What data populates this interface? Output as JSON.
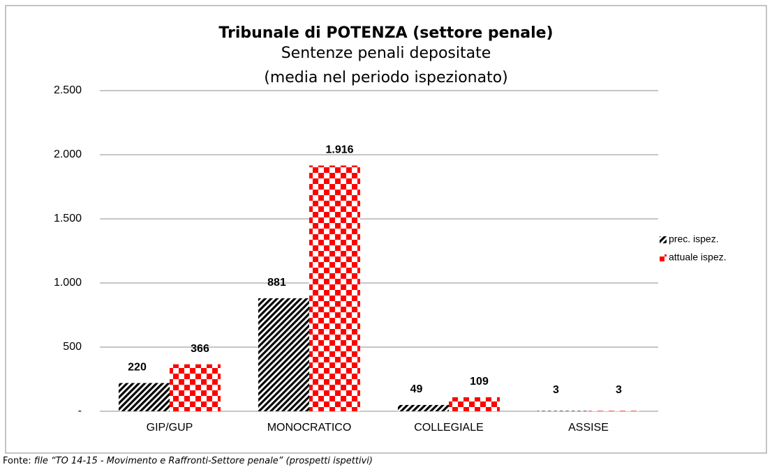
{
  "chart_data": {
    "type": "bar",
    "title": "Tribunale di POTENZA (settore penale)",
    "subtitle": [
      "Sentenze penali depositate",
      "(media nel periodo ispezionato)"
    ],
    "categories": [
      "GIP/GUP",
      "MONOCRATICO",
      "COLLEGIALE",
      "ASSISE"
    ],
    "series": [
      {
        "name": "prec. ispez.",
        "color": "#000000",
        "values": [
          220,
          881,
          49,
          3
        ],
        "value_labels": [
          "220",
          "881",
          "49",
          "3"
        ]
      },
      {
        "name": "attuale ispez.",
        "color": "#ff0000",
        "values": [
          366,
          1916,
          109,
          3
        ],
        "value_labels": [
          "366",
          "1.916",
          "109",
          "3"
        ]
      }
    ],
    "ylim": [
      0,
      2500
    ],
    "yticks": [
      {
        "value": 0,
        "label": "-"
      },
      500,
      {
        "value": 1000,
        "label": "1.000"
      },
      {
        "value": 1500,
        "label": "1.500"
      },
      {
        "value": 2000,
        "label": "2.000"
      },
      {
        "value": 2500,
        "label": "2.500"
      }
    ],
    "grid": true,
    "legend": "right",
    "source_label": "Fonte:",
    "source_text": "file “TO  14-15 - Movimento e Raffronti-Settore penale” (prospetti ispettivi)"
  }
}
